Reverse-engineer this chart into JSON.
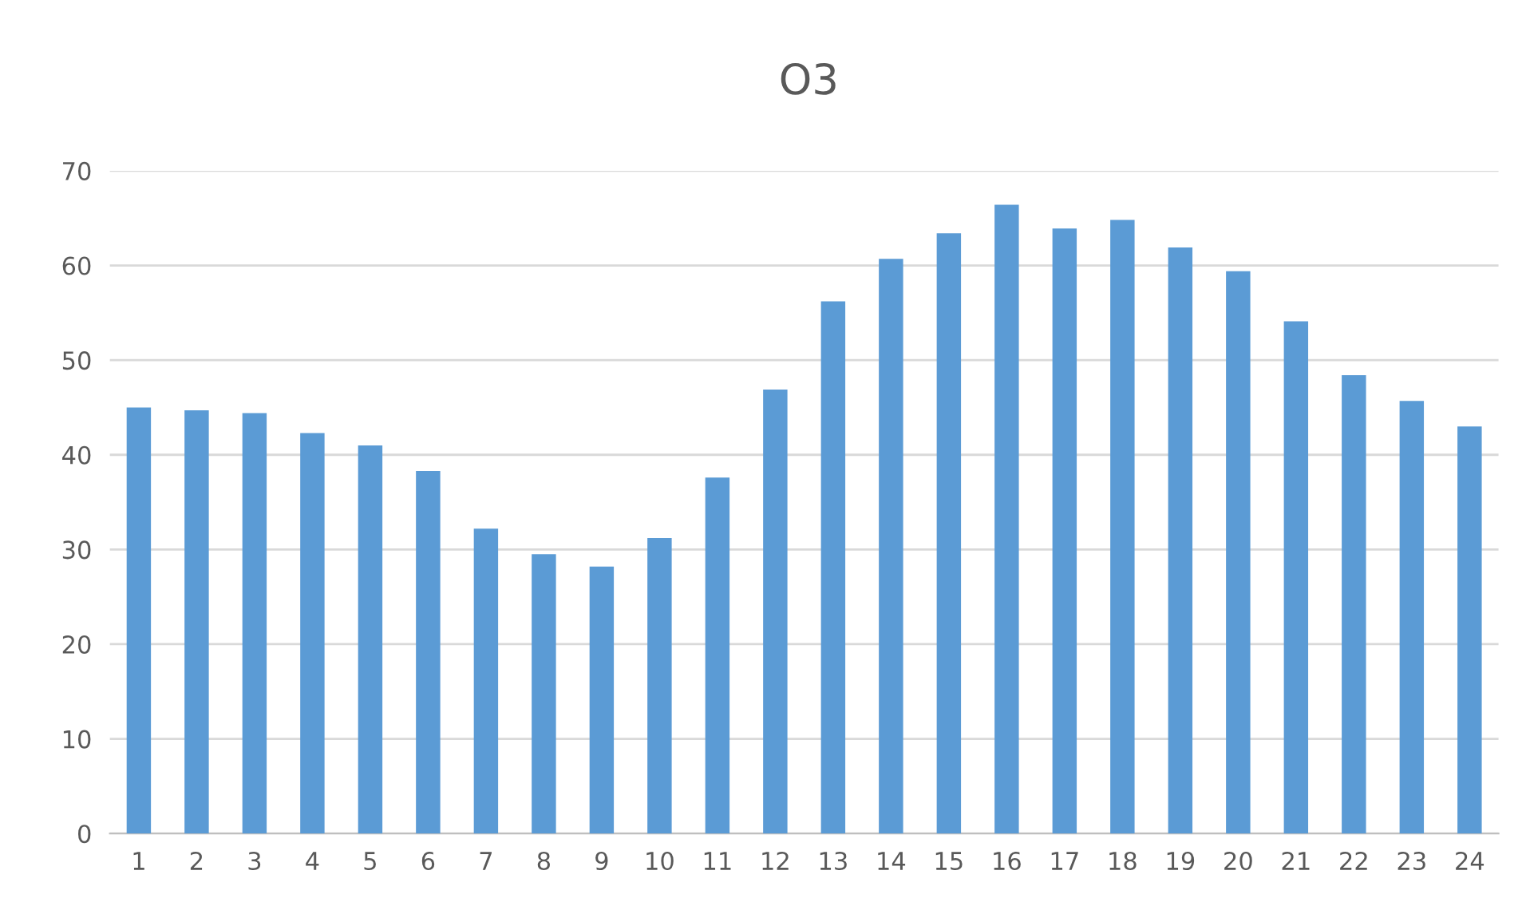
{
  "chart_data": {
    "type": "bar",
    "title": "O3",
    "categories": [
      "1",
      "2",
      "3",
      "4",
      "5",
      "6",
      "7",
      "8",
      "9",
      "10",
      "11",
      "12",
      "13",
      "14",
      "15",
      "16",
      "17",
      "18",
      "19",
      "20",
      "21",
      "22",
      "23",
      "24"
    ],
    "values": [
      45.0,
      44.7,
      44.4,
      42.3,
      41.0,
      38.3,
      32.2,
      29.5,
      28.2,
      31.2,
      37.6,
      46.9,
      56.2,
      60.7,
      63.4,
      66.4,
      63.9,
      64.8,
      61.9,
      59.4,
      54.1,
      48.4,
      45.7,
      43.0
    ],
    "color": "#5b9bd5",
    "ylim": [
      0,
      70
    ],
    "yticks": [
      0,
      10,
      20,
      30,
      40,
      50,
      60,
      70
    ],
    "grid": "y"
  }
}
